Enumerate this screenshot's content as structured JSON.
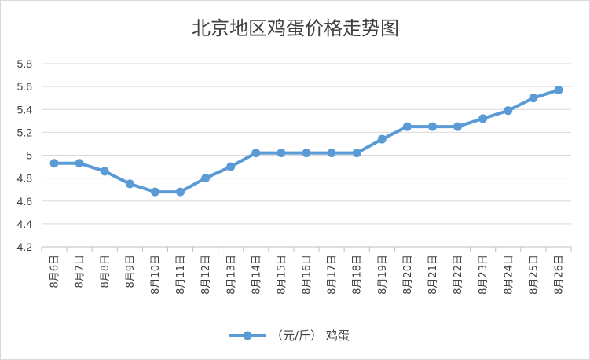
{
  "chart_data": {
    "type": "line",
    "title": "北京地区鸡蛋价格走势图",
    "xlabel": "",
    "ylabel": "",
    "categories": [
      "8月6日",
      "8月7日",
      "8月8日",
      "8月9日",
      "8月10日",
      "8月11日",
      "8月12日",
      "8月13日",
      "8月14日",
      "8月15日",
      "8月16日",
      "8月17日",
      "8月18日",
      "8月19日",
      "8月20日",
      "8月21日",
      "8月22日",
      "8月23日",
      "8月24日",
      "8月25日",
      "8月26日"
    ],
    "series": [
      {
        "name": "（元/斤） 鸡蛋",
        "values": [
          4.93,
          4.93,
          4.86,
          4.75,
          4.68,
          4.68,
          4.8,
          4.9,
          5.02,
          5.02,
          5.02,
          5.02,
          5.02,
          5.14,
          5.25,
          5.25,
          5.25,
          5.32,
          5.39,
          5.5,
          5.57
        ],
        "color": "#5b9bd5"
      }
    ],
    "ylim": [
      4.2,
      5.8
    ],
    "yticks": [
      4.2,
      4.4,
      4.6,
      4.8,
      5,
      5.2,
      5.4,
      5.6,
      5.8
    ],
    "grid": true,
    "legend": "bottom"
  }
}
